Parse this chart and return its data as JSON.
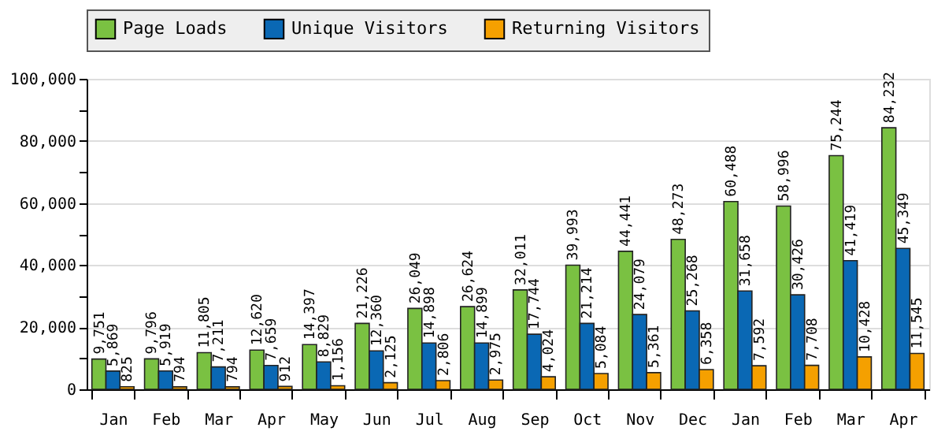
{
  "chart_data": {
    "type": "bar",
    "categories": [
      "Jan",
      "Feb",
      "Mar",
      "Apr",
      "May",
      "Jun",
      "Jul",
      "Aug",
      "Sep",
      "Oct",
      "Nov",
      "Dec",
      "Jan",
      "Feb",
      "Mar",
      "Apr"
    ],
    "series": [
      {
        "name": "Page Loads",
        "color": "#7ac142",
        "values": [
          9751,
          9796,
          11805,
          12620,
          14397,
          21226,
          26049,
          26624,
          32011,
          39993,
          44441,
          48273,
          60488,
          58996,
          75244,
          84232
        ],
        "value_labels": [
          "9,751",
          "9,796",
          "11,805",
          "12,620",
          "14,397",
          "21,226",
          "26,049",
          "26,624",
          "32,011",
          "39,993",
          "44,441",
          "48,273",
          "60,488",
          "58,996",
          "75,244",
          "84,232"
        ]
      },
      {
        "name": "Unique Visitors",
        "color": "#0a68b4",
        "values": [
          5869,
          5919,
          7211,
          7659,
          8829,
          12360,
          14898,
          14899,
          17744,
          21214,
          24079,
          25268,
          31658,
          30426,
          41419,
          45349
        ],
        "value_labels": [
          "5,869",
          "5,919",
          "7,211",
          "7,659",
          "8,829",
          "12,360",
          "14,898",
          "14,899",
          "17,744",
          "21,214",
          "24,079",
          "25,268",
          "31,658",
          "30,426",
          "41,419",
          "45,349"
        ]
      },
      {
        "name": "Returning Visitors",
        "color": "#f5a000",
        "values": [
          825,
          794,
          794,
          912,
          1156,
          2125,
          2806,
          2975,
          4024,
          5084,
          5361,
          6358,
          7592,
          7708,
          10428,
          11545
        ],
        "value_labels": [
          "825",
          "794",
          "794",
          "912",
          "1,156",
          "2,125",
          "2,806",
          "2,975",
          "4,024",
          "5,084",
          "5,361",
          "6,358",
          "7,592",
          "7,708",
          "10,428",
          "11,545"
        ]
      }
    ],
    "ylim": [
      0,
      100000
    ],
    "yticks": [
      {
        "value": 0,
        "label": "0"
      },
      {
        "value": 10000,
        "label": null
      },
      {
        "value": 20000,
        "label": "20,000"
      },
      {
        "value": 30000,
        "label": null
      },
      {
        "value": 40000,
        "label": "40,000"
      },
      {
        "value": 50000,
        "label": null
      },
      {
        "value": 60000,
        "label": "60,000"
      },
      {
        "value": 70000,
        "label": null
      },
      {
        "value": 80000,
        "label": "80,000"
      },
      {
        "value": 90000,
        "label": null
      },
      {
        "value": 100000,
        "label": "100,000"
      }
    ],
    "grid": "y",
    "legend": "top"
  }
}
